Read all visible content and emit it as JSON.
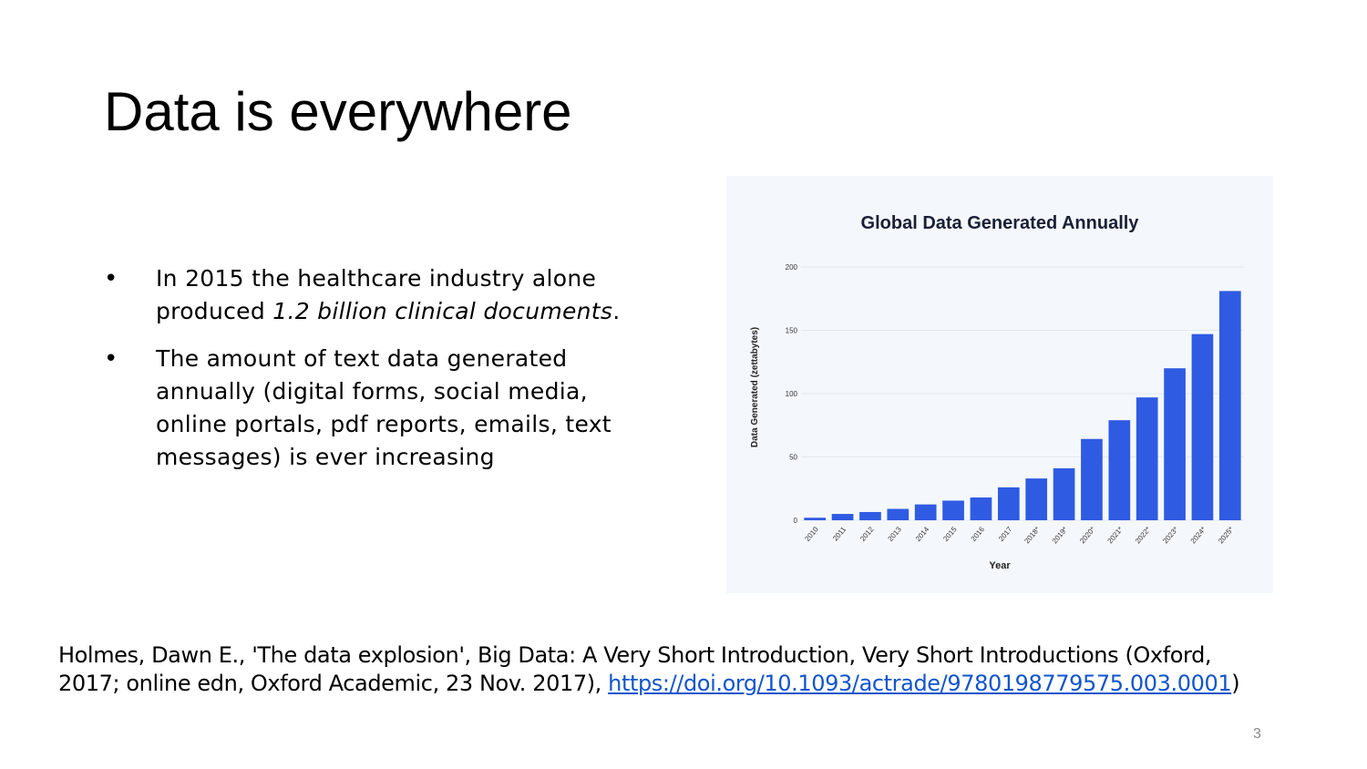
{
  "slide": {
    "title": "Data is everywhere",
    "page_number": "3"
  },
  "bullets": [
    {
      "text_before": "In 2015 the healthcare industry alone produced ",
      "text_italic": "1.2 billion clinical documents",
      "text_after": "."
    },
    {
      "text_before": "The amount of text data generated annually (digital forms, social media, online portals, pdf reports, emails, text messages) is ever increasing",
      "text_italic": "",
      "text_after": ""
    }
  ],
  "citation": {
    "text": "Holmes, Dawn E., 'The data explosion', Big Data: A Very Short Introduction, Very Short Introductions (Oxford, 2017; online edn, Oxford Academic, 23 Nov. 2017), ",
    "link": "https://doi.org/10.1093/actrade/9780198779575.003.0001",
    "closing": ")"
  },
  "chart_data": {
    "type": "bar",
    "title": "Global Data Generated Annually",
    "xlabel": "Year",
    "ylabel": "Data Generated (zettabytes)",
    "categories": [
      "2010",
      "2011",
      "2012",
      "2013",
      "2014",
      "2015",
      "2016",
      "2017",
      "2018*",
      "2019*",
      "2020*",
      "2021*",
      "2022*",
      "2023*",
      "2024*",
      "2025*"
    ],
    "values": [
      2,
      5,
      6.5,
      9,
      12.5,
      15.5,
      18,
      26,
      33,
      41,
      64.2,
      79,
      97,
      120,
      147,
      181
    ],
    "ylim": [
      0,
      200
    ],
    "yticks": [
      "0",
      "50",
      "100",
      "150",
      "200"
    ],
    "grid": true,
    "bar_color": "#2f5be3"
  }
}
